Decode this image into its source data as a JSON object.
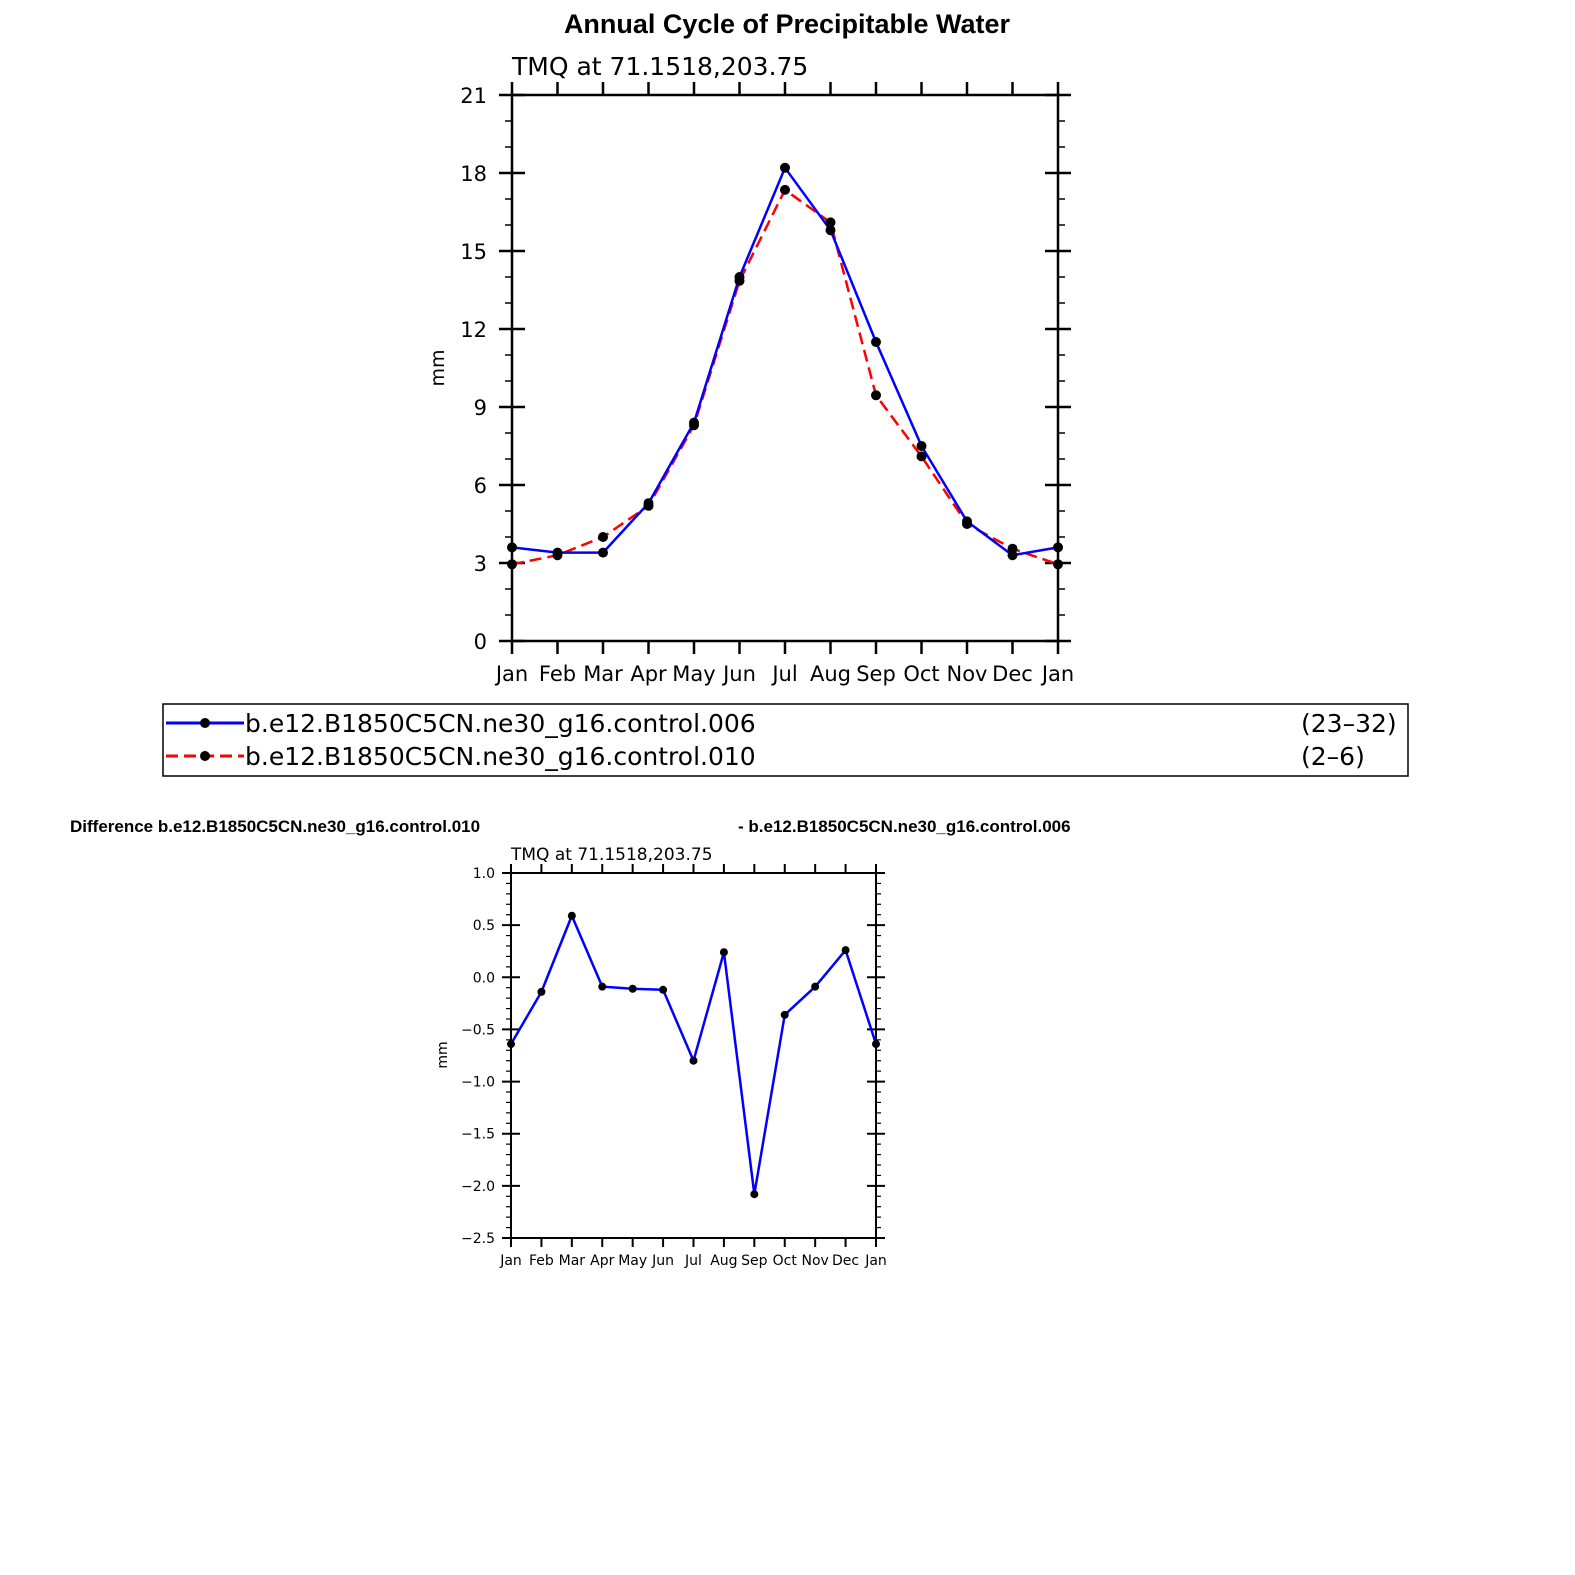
{
  "page": {
    "title": "Annual Cycle of Precipitable Water",
    "diff_title_left": "Difference b.e12.B1850C5CN.ne30_g16.control.010",
    "diff_title_right": "- b.e12.B1850C5CN.ne30_g16.control.006"
  },
  "colors": {
    "series1": "#0000ff",
    "series2": "#ff0000",
    "markers": "#000000"
  },
  "chart_data": [
    {
      "type": "line",
      "subtitle": "TMQ  at  71.1518,203.75",
      "ylabel": "mm",
      "xlabel": "",
      "categories": [
        "Jan",
        "Feb",
        "Mar",
        "Apr",
        "May",
        "Jun",
        "Jul",
        "Aug",
        "Sep",
        "Oct",
        "Nov",
        "Dec",
        "Jan"
      ],
      "ylim": [
        0,
        21
      ],
      "yticks": [
        0,
        3,
        6,
        9,
        12,
        15,
        18,
        21
      ],
      "ytick_labels": [
        "0",
        "3",
        "6",
        "9",
        "12",
        "15",
        "18",
        "21"
      ],
      "grid": false,
      "legend_position": "bottom",
      "series": [
        {
          "name": "b.e12.B1850C5CN.ne30_g16.control.006",
          "years": "(23–32)",
          "style": "solid",
          "color": "#0000ff",
          "values": [
            3.6,
            3.4,
            3.4,
            5.3,
            8.4,
            14.0,
            18.2,
            15.8,
            11.5,
            7.5,
            4.6,
            3.3,
            3.6
          ]
        },
        {
          "name": "b.e12.B1850C5CN.ne30_g16.control.010",
          "years": "(2–6)",
          "style": "dashed",
          "color": "#ff0000",
          "values": [
            2.95,
            3.3,
            4.0,
            5.2,
            8.3,
            13.85,
            17.35,
            16.1,
            9.45,
            7.1,
            4.5,
            3.55,
            2.95
          ]
        }
      ]
    },
    {
      "type": "line",
      "subtitle": "TMQ  at  71.1518,203.75",
      "ylabel": "mm",
      "xlabel": "",
      "categories": [
        "Jan",
        "Feb",
        "Mar",
        "Apr",
        "May",
        "Jun",
        "Jul",
        "Aug",
        "Sep",
        "Oct",
        "Nov",
        "Dec",
        "Jan"
      ],
      "ylim": [
        -2.5,
        1.0
      ],
      "yticks": [
        -2.5,
        -2.0,
        -1.5,
        -1.0,
        -0.5,
        0.0,
        0.5,
        1.0
      ],
      "ytick_labels": [
        "−2.5",
        "−2.0",
        "−1.5",
        "−1.0",
        "−0.5",
        "0.0",
        "0.5",
        "1.0"
      ],
      "grid": false,
      "series": [
        {
          "color": "#0000ff",
          "style": "solid",
          "values": [
            -0.64,
            -0.14,
            0.59,
            -0.09,
            -0.11,
            -0.12,
            -0.8,
            0.24,
            -2.08,
            -0.36,
            -0.09,
            0.26,
            -0.64
          ]
        }
      ]
    }
  ]
}
